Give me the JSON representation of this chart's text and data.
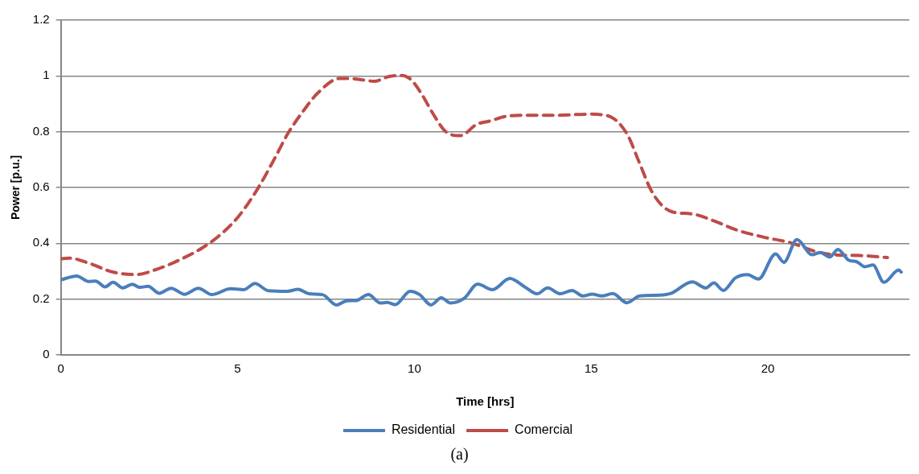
{
  "chart_data": {
    "type": "line",
    "xlabel": "Time [hrs]",
    "ylabel": "Power [p.u.]",
    "xlim": [
      0,
      24
    ],
    "xticks": [
      0,
      5,
      10,
      15,
      20
    ],
    "ylim": [
      0,
      1.2
    ],
    "yticks": [
      0,
      0.2,
      0.4,
      0.6,
      0.8,
      1,
      1.2
    ],
    "grid": "y",
    "legend": "bottom",
    "marker": "none",
    "annotations": [
      "(a)"
    ],
    "series": [
      {
        "name": "Residential",
        "color": "#4a7ebb",
        "line_style": "solid",
        "x": [
          0,
          0.45,
          0.79,
          0.98,
          1.25,
          1.48,
          1.75,
          2.02,
          2.24,
          2.47,
          2.78,
          3.12,
          3.5,
          3.89,
          4.27,
          4.8,
          5.18,
          5.49,
          5.87,
          6.41,
          6.71,
          7.02,
          7.4,
          7.8,
          8.09,
          8.35,
          8.7,
          9.04,
          9.23,
          9.46,
          9.88,
          10.15,
          10.47,
          10.76,
          11.02,
          11.41,
          11.79,
          12.21,
          12.7,
          13.12,
          13.47,
          13.77,
          14.12,
          14.46,
          14.77,
          15.03,
          15.3,
          15.61,
          16.01,
          16.37,
          16.94,
          17.25,
          17.86,
          18.24,
          18.47,
          18.74,
          19.08,
          19.42,
          19.73,
          20.22,
          20.45,
          20.82,
          21.25,
          21.48,
          21.75,
          21.98,
          22.29,
          22.51,
          22.74,
          22.97,
          23.28,
          23.7,
          23.77
        ],
        "values": [
          0.269,
          0.283,
          0.263,
          0.265,
          0.244,
          0.26,
          0.24,
          0.253,
          0.242,
          0.246,
          0.221,
          0.239,
          0.217,
          0.239,
          0.216,
          0.237,
          0.234,
          0.256,
          0.23,
          0.228,
          0.235,
          0.219,
          0.216,
          0.179,
          0.194,
          0.195,
          0.216,
          0.186,
          0.188,
          0.18,
          0.228,
          0.216,
          0.179,
          0.205,
          0.186,
          0.203,
          0.254,
          0.234,
          0.274,
          0.244,
          0.219,
          0.24,
          0.219,
          0.231,
          0.211,
          0.218,
          0.211,
          0.22,
          0.187,
          0.211,
          0.214,
          0.22,
          0.262,
          0.24,
          0.258,
          0.231,
          0.276,
          0.288,
          0.272,
          0.362,
          0.332,
          0.413,
          0.359,
          0.367,
          0.351,
          0.378,
          0.339,
          0.334,
          0.316,
          0.322,
          0.26,
          0.304,
          0.297
        ]
      },
      {
        "name": "Comercial",
        "color": "#be4b48",
        "line_style": "dashed",
        "x": [
          0,
          0.23,
          0.81,
          1.47,
          2.12,
          2.78,
          3.4,
          4.02,
          4.56,
          5.03,
          5.57,
          6.03,
          6.42,
          6.85,
          7.27,
          7.89,
          8.36,
          8.86,
          9.29,
          9.64,
          9.91,
          10.21,
          10.53,
          10.91,
          11.3,
          11.76,
          12.15,
          12.63,
          13.34,
          14.06,
          14.93,
          15.41,
          15.72,
          16.04,
          16.36,
          16.68,
          17,
          17.31,
          17.87,
          18.5,
          19.13,
          19.85,
          20.64,
          21.43,
          21.99,
          22.62,
          23.38
        ],
        "values": [
          0.344,
          0.347,
          0.328,
          0.297,
          0.288,
          0.31,
          0.343,
          0.385,
          0.436,
          0.497,
          0.596,
          0.7,
          0.793,
          0.873,
          0.939,
          0.991,
          0.989,
          0.981,
          0.998,
          1.002,
          0.986,
          0.934,
          0.864,
          0.798,
          0.786,
          0.826,
          0.839,
          0.856,
          0.859,
          0.859,
          0.863,
          0.859,
          0.839,
          0.786,
          0.69,
          0.594,
          0.536,
          0.512,
          0.505,
          0.479,
          0.447,
          0.423,
          0.402,
          0.368,
          0.358,
          0.356,
          0.349
        ]
      }
    ]
  }
}
